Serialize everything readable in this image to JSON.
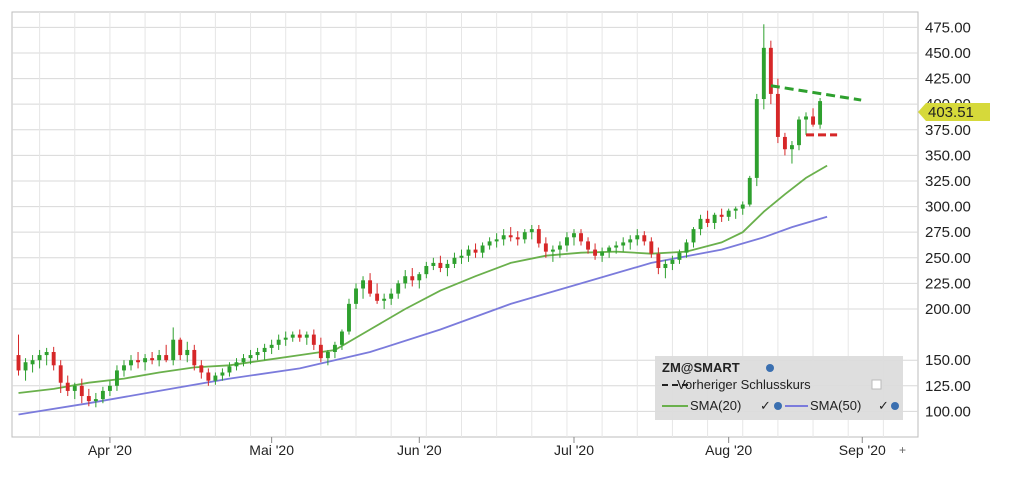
{
  "chart_data": {
    "type": "candlestick",
    "symbol_label": "ZM@SMART",
    "y_ticks": [
      "475.00",
      "450.00",
      "425.00",
      "400.00",
      "375.00",
      "350.00",
      "325.00",
      "300.00",
      "275.00",
      "250.00",
      "225.00",
      "200.00",
      "150.00",
      "125.00",
      "100.00"
    ],
    "y_tick_values": [
      475,
      450,
      425,
      400,
      375,
      350,
      325,
      300,
      275,
      250,
      225,
      200,
      150,
      125,
      100
    ],
    "ylim": [
      75,
      490
    ],
    "x_ticks": [
      "Apr '20",
      "Mai '20",
      "Jun '20",
      "Jul '20",
      "Aug '20",
      "Sep '20"
    ],
    "x_tick_positions": [
      13,
      36,
      57,
      79,
      101,
      120
    ],
    "n_days": 128,
    "current_price_label": "403.51",
    "current_price": 403.51,
    "colors": {
      "up": "#2ea02e",
      "down": "#d62728",
      "sma20": "#6ab04c",
      "sma50": "#7b7bdc",
      "grid": "#d8d8d8",
      "price_badge": "#d6d93a",
      "legend_bg": "#dcdcdc"
    },
    "candles": [
      [
        0,
        155,
        175,
        135,
        140
      ],
      [
        1,
        140,
        152,
        130,
        148
      ],
      [
        2,
        146,
        155,
        138,
        150
      ],
      [
        3,
        150,
        160,
        142,
        155
      ],
      [
        4,
        155,
        162,
        145,
        158
      ],
      [
        5,
        158,
        163,
        140,
        145
      ],
      [
        6,
        145,
        150,
        118,
        128
      ],
      [
        7,
        128,
        135,
        115,
        120
      ],
      [
        8,
        120,
        128,
        112,
        125
      ],
      [
        9,
        125,
        132,
        108,
        115
      ],
      [
        10,
        115,
        122,
        105,
        110
      ],
      [
        11,
        110,
        118,
        104,
        112
      ],
      [
        12,
        112,
        124,
        108,
        120
      ],
      [
        13,
        120,
        130,
        115,
        125
      ],
      [
        14,
        125,
        145,
        120,
        140
      ],
      [
        15,
        140,
        150,
        134,
        145
      ],
      [
        16,
        145,
        155,
        140,
        150
      ],
      [
        17,
        150,
        158,
        142,
        148
      ],
      [
        18,
        148,
        156,
        140,
        152
      ],
      [
        19,
        152,
        158,
        146,
        150
      ],
      [
        20,
        150,
        160,
        144,
        155
      ],
      [
        21,
        155,
        165,
        148,
        150
      ],
      [
        22,
        150,
        182,
        145,
        170
      ],
      [
        23,
        170,
        172,
        150,
        155
      ],
      [
        24,
        155,
        168,
        148,
        160
      ],
      [
        25,
        160,
        165,
        140,
        145
      ],
      [
        26,
        145,
        150,
        132,
        138
      ],
      [
        27,
        138,
        142,
        125,
        130
      ],
      [
        28,
        130,
        138,
        126,
        135
      ],
      [
        29,
        135,
        142,
        130,
        138
      ],
      [
        30,
        138,
        148,
        134,
        144
      ],
      [
        31,
        144,
        152,
        140,
        148
      ],
      [
        32,
        148,
        156,
        144,
        152
      ],
      [
        33,
        152,
        160,
        146,
        155
      ],
      [
        34,
        155,
        162,
        150,
        158
      ],
      [
        35,
        158,
        166,
        150,
        162
      ],
      [
        36,
        162,
        170,
        156,
        165
      ],
      [
        37,
        165,
        175,
        160,
        170
      ],
      [
        38,
        170,
        178,
        164,
        172
      ],
      [
        39,
        172,
        178,
        168,
        175
      ],
      [
        40,
        175,
        180,
        168,
        172
      ],
      [
        41,
        172,
        178,
        165,
        175
      ],
      [
        42,
        175,
        180,
        160,
        165
      ],
      [
        43,
        165,
        172,
        148,
        152
      ],
      [
        44,
        152,
        160,
        145,
        158
      ],
      [
        45,
        158,
        168,
        152,
        165
      ],
      [
        46,
        165,
        180,
        160,
        178
      ],
      [
        47,
        178,
        210,
        175,
        205
      ],
      [
        48,
        205,
        225,
        200,
        220
      ],
      [
        49,
        220,
        232,
        210,
        228
      ],
      [
        50,
        228,
        235,
        212,
        215
      ],
      [
        51,
        215,
        225,
        205,
        208
      ],
      [
        52,
        208,
        215,
        200,
        210
      ],
      [
        53,
        210,
        220,
        204,
        215
      ],
      [
        54,
        215,
        228,
        210,
        225
      ],
      [
        55,
        225,
        238,
        220,
        232
      ],
      [
        56,
        232,
        240,
        222,
        228
      ],
      [
        57,
        228,
        236,
        220,
        234
      ],
      [
        58,
        234,
        246,
        230,
        242
      ],
      [
        59,
        242,
        250,
        238,
        245
      ],
      [
        60,
        245,
        252,
        236,
        240
      ],
      [
        61,
        240,
        248,
        232,
        244
      ],
      [
        62,
        244,
        255,
        240,
        250
      ],
      [
        63,
        250,
        258,
        244,
        252
      ],
      [
        64,
        252,
        262,
        246,
        258
      ],
      [
        65,
        258,
        264,
        250,
        255
      ],
      [
        66,
        255,
        265,
        250,
        262
      ],
      [
        67,
        262,
        270,
        258,
        266
      ],
      [
        68,
        266,
        274,
        260,
        268
      ],
      [
        69,
        268,
        278,
        262,
        272
      ],
      [
        70,
        272,
        280,
        266,
        270
      ],
      [
        71,
        270,
        276,
        262,
        268
      ],
      [
        72,
        268,
        278,
        264,
        275
      ],
      [
        73,
        275,
        282,
        268,
        278
      ],
      [
        74,
        278,
        282,
        260,
        264
      ],
      [
        75,
        264,
        270,
        250,
        256
      ],
      [
        76,
        256,
        262,
        246,
        258
      ],
      [
        77,
        258,
        266,
        250,
        262
      ],
      [
        78,
        262,
        275,
        256,
        270
      ],
      [
        79,
        270,
        278,
        262,
        274
      ],
      [
        80,
        274,
        278,
        262,
        266
      ],
      [
        81,
        266,
        270,
        254,
        258
      ],
      [
        82,
        258,
        264,
        248,
        252
      ],
      [
        83,
        252,
        260,
        246,
        256
      ],
      [
        84,
        256,
        262,
        250,
        260
      ],
      [
        85,
        260,
        266,
        254,
        262
      ],
      [
        86,
        262,
        270,
        256,
        265
      ],
      [
        87,
        265,
        272,
        258,
        268
      ],
      [
        88,
        268,
        278,
        262,
        272
      ],
      [
        89,
        272,
        276,
        262,
        266
      ],
      [
        90,
        266,
        270,
        250,
        254
      ],
      [
        91,
        254,
        260,
        234,
        240
      ],
      [
        92,
        240,
        248,
        230,
        244
      ],
      [
        93,
        244,
        252,
        238,
        248
      ],
      [
        94,
        248,
        258,
        244,
        255
      ],
      [
        95,
        255,
        268,
        250,
        265
      ],
      [
        96,
        265,
        280,
        260,
        278
      ],
      [
        97,
        278,
        292,
        272,
        288
      ],
      [
        98,
        288,
        296,
        280,
        284
      ],
      [
        99,
        284,
        294,
        278,
        292
      ],
      [
        100,
        292,
        298,
        285,
        290
      ],
      [
        101,
        290,
        298,
        286,
        296
      ],
      [
        102,
        296,
        300,
        288,
        298
      ],
      [
        103,
        298,
        305,
        292,
        302
      ],
      [
        104,
        302,
        330,
        300,
        328
      ],
      [
        105,
        328,
        410,
        320,
        405
      ],
      [
        106,
        405,
        478,
        395,
        455
      ],
      [
        107,
        455,
        462,
        400,
        410
      ],
      [
        108,
        410,
        425,
        362,
        368
      ],
      [
        109,
        368,
        372,
        350,
        356
      ],
      [
        110,
        356,
        364,
        342,
        360
      ],
      [
        111,
        360,
        388,
        355,
        385
      ],
      [
        112,
        385,
        392,
        370,
        388
      ],
      [
        113,
        388,
        396,
        378,
        380
      ],
      [
        114,
        380,
        406,
        376,
        403
      ]
    ],
    "sma20": [
      [
        0,
        118
      ],
      [
        5,
        122
      ],
      [
        10,
        128
      ],
      [
        15,
        132
      ],
      [
        20,
        138
      ],
      [
        25,
        143
      ],
      [
        30,
        145
      ],
      [
        35,
        150
      ],
      [
        40,
        155
      ],
      [
        45,
        160
      ],
      [
        50,
        180
      ],
      [
        55,
        200
      ],
      [
        60,
        218
      ],
      [
        65,
        232
      ],
      [
        70,
        245
      ],
      [
        75,
        252
      ],
      [
        80,
        255
      ],
      [
        85,
        256
      ],
      [
        90,
        254
      ],
      [
        95,
        256
      ],
      [
        100,
        265
      ],
      [
        103,
        275
      ],
      [
        106,
        295
      ],
      [
        109,
        312
      ],
      [
        112,
        328
      ],
      [
        115,
        340
      ]
    ],
    "sma50": [
      [
        0,
        97
      ],
      [
        10,
        108
      ],
      [
        20,
        120
      ],
      [
        30,
        132
      ],
      [
        40,
        142
      ],
      [
        50,
        158
      ],
      [
        60,
        180
      ],
      [
        70,
        205
      ],
      [
        80,
        225
      ],
      [
        90,
        245
      ],
      [
        100,
        258
      ],
      [
        106,
        270
      ],
      [
        110,
        280
      ],
      [
        115,
        290
      ]
    ],
    "resistance_line": {
      "x": [
        107,
        117
      ],
      "y": [
        418,
        404
      ]
    },
    "prev_close_line": {
      "x": [
        112,
        115
      ],
      "y": [
        370,
        370
      ]
    },
    "legend": {
      "title": "ZM@SMART",
      "prev_close": "Vorheriger Schlusskurs",
      "sma20": "SMA(20)",
      "sma50": "SMA(50)"
    }
  }
}
